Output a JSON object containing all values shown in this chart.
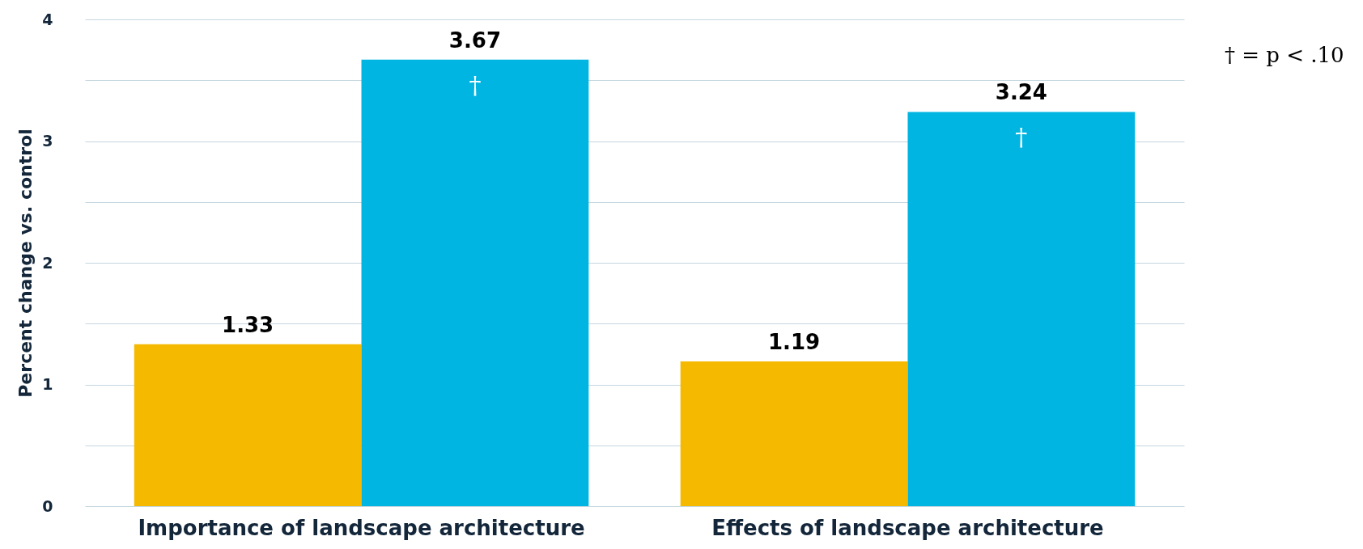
{
  "chart_data": {
    "type": "bar",
    "ylabel": "Percent change vs. control",
    "categories": [
      "Importance of landscape architecture",
      "Effects of landscape architecture"
    ],
    "series": [
      {
        "color": "#f5b900",
        "values": [
          1.33,
          1.19
        ]
      },
      {
        "color": "#00b5e2",
        "values": [
          3.67,
          3.24
        ]
      }
    ],
    "ylim": [
      0,
      4
    ],
    "yticks": [
      0,
      {
        "value": 0.5,
        "label": null
      },
      1,
      {
        "value": 1.5,
        "label": null
      },
      2,
      {
        "value": 2.5,
        "label": null
      },
      3,
      {
        "value": 3.5,
        "label": null
      },
      4
    ],
    "grid": "y",
    "data_labels": true,
    "annotations": [
      "†",
      "†",
      "† = p < .10"
    ]
  }
}
